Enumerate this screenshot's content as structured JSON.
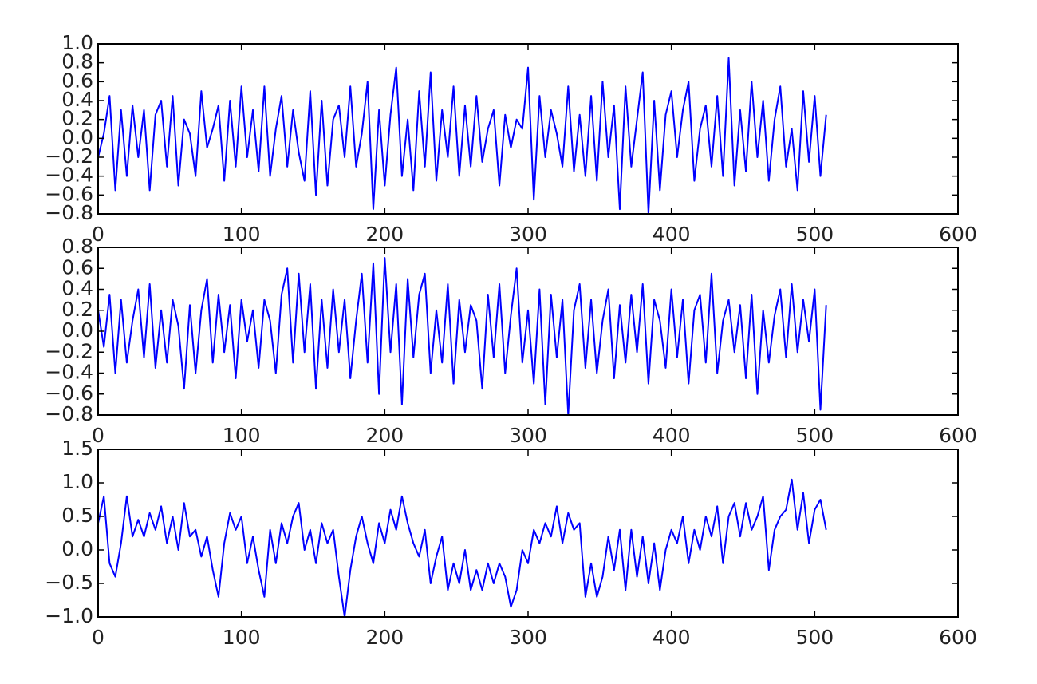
{
  "chart_data": [
    {
      "type": "line",
      "x": [
        0,
        4,
        8,
        12,
        16,
        20,
        24,
        28,
        32,
        36,
        40,
        44,
        48,
        52,
        56,
        60,
        64,
        68,
        72,
        76,
        80,
        84,
        88,
        92,
        96,
        100,
        104,
        108,
        112,
        116,
        120,
        124,
        128,
        132,
        136,
        140,
        144,
        148,
        152,
        156,
        160,
        164,
        168,
        172,
        176,
        180,
        184,
        188,
        192,
        196,
        200,
        204,
        208,
        212,
        216,
        220,
        224,
        228,
        232,
        236,
        240,
        244,
        248,
        252,
        256,
        260,
        264,
        268,
        272,
        276,
        280,
        284,
        288,
        292,
        296,
        300,
        304,
        308,
        312,
        316,
        320,
        324,
        328,
        332,
        336,
        340,
        344,
        348,
        352,
        356,
        360,
        364,
        368,
        372,
        376,
        380,
        384,
        388,
        392,
        396,
        400,
        404,
        408,
        412,
        416,
        420,
        424,
        428,
        432,
        436,
        440,
        444,
        448,
        452,
        456,
        460,
        464,
        468,
        472,
        476,
        480,
        484,
        488,
        492,
        496,
        500,
        504,
        508
      ],
      "series": [
        {
          "color": "#0000ff",
          "values": [
            -0.2,
            0.05,
            0.45,
            -0.55,
            0.3,
            -0.4,
            0.35,
            -0.2,
            0.3,
            -0.55,
            0.25,
            0.4,
            -0.3,
            0.45,
            -0.5,
            0.2,
            0.05,
            -0.4,
            0.5,
            -0.1,
            0.1,
            0.35,
            -0.45,
            0.4,
            -0.3,
            0.55,
            -0.2,
            0.3,
            -0.35,
            0.55,
            -0.4,
            0.1,
            0.45,
            -0.3,
            0.3,
            -0.15,
            -0.45,
            0.5,
            -0.6,
            0.4,
            -0.5,
            0.2,
            0.35,
            -0.2,
            0.55,
            -0.3,
            0.05,
            0.6,
            -0.75,
            0.3,
            -0.5,
            0.25,
            0.75,
            -0.4,
            0.2,
            -0.55,
            0.5,
            -0.3,
            0.7,
            -0.45,
            0.3,
            -0.2,
            0.55,
            -0.4,
            0.35,
            -0.3,
            0.45,
            -0.25,
            0.1,
            0.3,
            -0.5,
            0.25,
            -0.1,
            0.2,
            0.1,
            0.75,
            -0.65,
            0.45,
            -0.2,
            0.3,
            0.05,
            -0.3,
            0.55,
            -0.35,
            0.25,
            -0.4,
            0.45,
            -0.45,
            0.6,
            -0.2,
            0.35,
            -0.75,
            0.55,
            -0.3,
            0.2,
            0.7,
            -0.8,
            0.4,
            -0.55,
            0.25,
            0.5,
            -0.2,
            0.3,
            0.6,
            -0.45,
            0.1,
            0.35,
            -0.3,
            0.45,
            -0.4,
            0.85,
            -0.5,
            0.3,
            -0.35,
            0.6,
            -0.2,
            0.4,
            -0.45,
            0.2,
            0.55,
            -0.3,
            0.1,
            -0.55,
            0.5,
            -0.25,
            0.45,
            -0.4,
            0.25
          ]
        }
      ],
      "xlim": [
        0,
        600
      ],
      "xticks": [
        0,
        100,
        200,
        300,
        400,
        500,
        600
      ],
      "ylim": [
        -0.8,
        1.0
      ],
      "yticks": [
        {
          "value": -0.8,
          "label": "−0.8"
        },
        {
          "value": -0.6,
          "label": "−0.6"
        },
        {
          "value": -0.4,
          "label": "−0.4"
        },
        {
          "value": -0.2,
          "label": "−0.2"
        },
        {
          "value": 0,
          "label": "0.0"
        },
        0.2,
        0.4,
        0.6,
        0.8,
        {
          "value": 1,
          "label": "1.0"
        }
      ]
    },
    {
      "type": "line",
      "x": [
        0,
        4,
        8,
        12,
        16,
        20,
        24,
        28,
        32,
        36,
        40,
        44,
        48,
        52,
        56,
        60,
        64,
        68,
        72,
        76,
        80,
        84,
        88,
        92,
        96,
        100,
        104,
        108,
        112,
        116,
        120,
        124,
        128,
        132,
        136,
        140,
        144,
        148,
        152,
        156,
        160,
        164,
        168,
        172,
        176,
        180,
        184,
        188,
        192,
        196,
        200,
        204,
        208,
        212,
        216,
        220,
        224,
        228,
        232,
        236,
        240,
        244,
        248,
        252,
        256,
        260,
        264,
        268,
        272,
        276,
        280,
        284,
        288,
        292,
        296,
        300,
        304,
        308,
        312,
        316,
        320,
        324,
        328,
        332,
        336,
        340,
        344,
        348,
        352,
        356,
        360,
        364,
        368,
        372,
        376,
        380,
        384,
        388,
        392,
        396,
        400,
        404,
        408,
        412,
        416,
        420,
        424,
        428,
        432,
        436,
        440,
        444,
        448,
        452,
        456,
        460,
        464,
        468,
        472,
        476,
        480,
        484,
        488,
        492,
        496,
        500,
        504,
        508
      ],
      "series": [
        {
          "color": "#0000ff",
          "values": [
            0.2,
            -0.15,
            0.35,
            -0.4,
            0.3,
            -0.3,
            0.1,
            0.4,
            -0.25,
            0.45,
            -0.35,
            0.2,
            -0.3,
            0.3,
            0.05,
            -0.55,
            0.25,
            -0.4,
            0.2,
            0.5,
            -0.3,
            0.35,
            -0.2,
            0.25,
            -0.45,
            0.3,
            -0.1,
            0.2,
            -0.35,
            0.3,
            0.1,
            -0.4,
            0.35,
            0.6,
            -0.3,
            0.55,
            -0.2,
            0.45,
            -0.55,
            0.3,
            -0.35,
            0.4,
            -0.2,
            0.3,
            -0.45,
            0.1,
            0.55,
            -0.3,
            0.65,
            -0.6,
            0.7,
            -0.2,
            0.45,
            -0.7,
            0.5,
            -0.25,
            0.35,
            0.55,
            -0.4,
            0.2,
            -0.3,
            0.45,
            -0.5,
            0.3,
            -0.2,
            0.25,
            0.1,
            -0.55,
            0.35,
            -0.25,
            0.45,
            -0.4,
            0.15,
            0.6,
            -0.3,
            0.2,
            -0.5,
            0.4,
            -0.7,
            0.35,
            -0.25,
            0.3,
            -0.8,
            0.2,
            0.45,
            -0.35,
            0.3,
            -0.4,
            0.1,
            0.4,
            -0.45,
            0.25,
            -0.3,
            0.35,
            -0.2,
            0.45,
            -0.5,
            0.3,
            0.1,
            -0.35,
            0.4,
            -0.25,
            0.3,
            -0.5,
            0.2,
            0.35,
            -0.3,
            0.55,
            -0.4,
            0.1,
            0.3,
            -0.2,
            0.25,
            -0.45,
            0.35,
            -0.6,
            0.2,
            -0.3,
            0.15,
            0.4,
            -0.25,
            0.45,
            -0.2,
            0.3,
            -0.1,
            0.4,
            -0.75,
            0.25
          ]
        }
      ],
      "xlim": [
        0,
        600
      ],
      "xticks": [
        0,
        100,
        200,
        300,
        400,
        500,
        600
      ],
      "ylim": [
        -0.8,
        0.8
      ],
      "yticks": [
        {
          "value": -0.8,
          "label": "−0.8"
        },
        {
          "value": -0.6,
          "label": "−0.6"
        },
        {
          "value": -0.4,
          "label": "−0.4"
        },
        {
          "value": -0.2,
          "label": "−0.2"
        },
        {
          "value": 0,
          "label": "0.0"
        },
        0.2,
        0.4,
        0.6,
        0.8
      ]
    },
    {
      "type": "line",
      "x": [
        0,
        4,
        8,
        12,
        16,
        20,
        24,
        28,
        32,
        36,
        40,
        44,
        48,
        52,
        56,
        60,
        64,
        68,
        72,
        76,
        80,
        84,
        88,
        92,
        96,
        100,
        104,
        108,
        112,
        116,
        120,
        124,
        128,
        132,
        136,
        140,
        144,
        148,
        152,
        156,
        160,
        164,
        168,
        172,
        176,
        180,
        184,
        188,
        192,
        196,
        200,
        204,
        208,
        212,
        216,
        220,
        224,
        228,
        232,
        236,
        240,
        244,
        248,
        252,
        256,
        260,
        264,
        268,
        272,
        276,
        280,
        284,
        288,
        292,
        296,
        300,
        304,
        308,
        312,
        316,
        320,
        324,
        328,
        332,
        336,
        340,
        344,
        348,
        352,
        356,
        360,
        364,
        368,
        372,
        376,
        380,
        384,
        388,
        392,
        396,
        400,
        404,
        408,
        412,
        416,
        420,
        424,
        428,
        432,
        436,
        440,
        444,
        448,
        452,
        456,
        460,
        464,
        468,
        472,
        476,
        480,
        484,
        488,
        492,
        496,
        500,
        504,
        508
      ],
      "series": [
        {
          "color": "#0000ff",
          "values": [
            0.4,
            0.8,
            -0.2,
            -0.4,
            0.1,
            0.8,
            0.2,
            0.45,
            0.2,
            0.55,
            0.3,
            0.65,
            0.1,
            0.5,
            0.0,
            0.7,
            0.2,
            0.3,
            -0.1,
            0.2,
            -0.3,
            -0.7,
            0.1,
            0.55,
            0.3,
            0.5,
            -0.2,
            0.2,
            -0.3,
            -0.7,
            0.3,
            -0.2,
            0.4,
            0.1,
            0.5,
            0.7,
            0.0,
            0.3,
            -0.2,
            0.4,
            0.1,
            0.3,
            -0.4,
            -1.0,
            -0.3,
            0.2,
            0.5,
            0.1,
            -0.2,
            0.4,
            0.1,
            0.6,
            0.3,
            0.8,
            0.4,
            0.1,
            -0.1,
            0.3,
            -0.5,
            -0.1,
            0.2,
            -0.6,
            -0.2,
            -0.5,
            0.0,
            -0.6,
            -0.3,
            -0.6,
            -0.2,
            -0.5,
            -0.2,
            -0.4,
            -0.85,
            -0.6,
            0.0,
            -0.2,
            0.3,
            0.1,
            0.4,
            0.2,
            0.65,
            0.1,
            0.55,
            0.3,
            0.4,
            -0.7,
            -0.2,
            -0.7,
            -0.4,
            0.2,
            -0.3,
            0.3,
            -0.6,
            0.3,
            -0.4,
            0.2,
            -0.5,
            0.1,
            -0.6,
            0.0,
            0.3,
            0.1,
            0.5,
            -0.2,
            0.3,
            0.0,
            0.5,
            0.2,
            0.65,
            -0.2,
            0.5,
            0.7,
            0.2,
            0.7,
            0.3,
            0.5,
            0.8,
            -0.3,
            0.3,
            0.5,
            0.6,
            1.05,
            0.3,
            0.85,
            0.1,
            0.6,
            0.75,
            0.3
          ]
        }
      ],
      "xlim": [
        0,
        600
      ],
      "xticks": [
        0,
        100,
        200,
        300,
        400,
        500,
        600
      ],
      "ylim": [
        -1.0,
        1.5
      ],
      "yticks": [
        {
          "value": -1,
          "label": "−1.0"
        },
        {
          "value": -0.5,
          "label": "−0.5"
        },
        {
          "value": 0,
          "label": "0.0"
        },
        0.5,
        {
          "value": 1,
          "label": "1.0"
        },
        {
          "value": 1.5,
          "label": "1.5"
        }
      ]
    }
  ]
}
